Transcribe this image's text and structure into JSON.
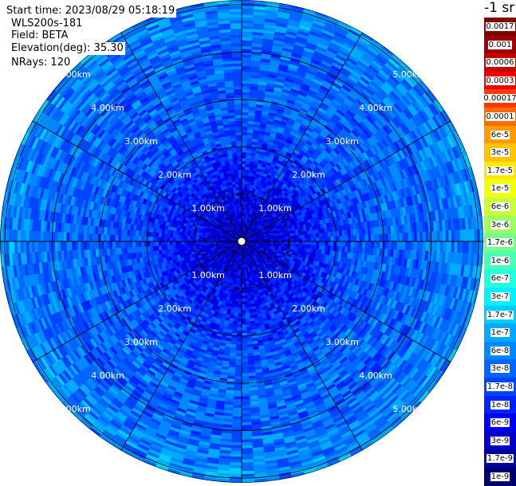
{
  "header": {
    "start_time": "Start time: 2023/08/29 05:18:19",
    "instrument": "WLS200s-181",
    "field": "Field: BETA",
    "elevation": "Elevation(deg): 35.30",
    "nrays": "NRays: 120"
  },
  "colorbar": {
    "unit": "-1 sr",
    "labels": [
      "0.0017",
      "0.001",
      "0.0006",
      "0.0003",
      "0.00017",
      "0.0001",
      "6e-5",
      "3e-5",
      "1.7e-5",
      "1e-5",
      "6e-6",
      "3e-6",
      "1.7e-6",
      "1e-6",
      "6e-7",
      "3e-7",
      "1.7e-7",
      "1e-7",
      "6e-8",
      "3e-8",
      "1.7e-8",
      "1e-8",
      "6e-9",
      "3e-9",
      "1.7e-9",
      "1e-9"
    ],
    "colors": [
      "#7f0000",
      "#9a0000",
      "#c80000",
      "#f00000",
      "#ff3a00",
      "#ff6a00",
      "#ff9a00",
      "#ffc400",
      "#ffe800",
      "#f2ff0a",
      "#c8ff36",
      "#9cff62",
      "#72ff8c",
      "#48ffb6",
      "#22ffdc",
      "#00f0ff",
      "#00ccff",
      "#00aaff",
      "#0088ff",
      "#0066ff",
      "#0044ff",
      "#0022ff",
      "#0000f0",
      "#0000c8",
      "#00009a",
      "#00006e"
    ]
  },
  "chart_data": {
    "type": "heatmap",
    "projection": "polar (PPI scan)",
    "field": "BETA",
    "elevation_deg": 35.3,
    "nrays": 120,
    "range_rings": [
      {
        "range_km": 1,
        "label": "1.00km"
      },
      {
        "range_km": 2,
        "label": "2.00km"
      },
      {
        "range_km": 3,
        "label": "3.00km"
      },
      {
        "range_km": 4,
        "label": "4.00km"
      },
      {
        "range_km": 5,
        "label": "5.00km"
      }
    ],
    "max_range_km": 5.1,
    "spoke_azimuths_deg": [
      0,
      30,
      60,
      90,
      120,
      150,
      180,
      210,
      240,
      270,
      300,
      330
    ],
    "value_range": [
      1e-09,
      0.0017
    ],
    "color_scale": "log",
    "values_by_range": [
      {
        "range_km": 0.3,
        "beta": 3e-09
      },
      {
        "range_km": 1.0,
        "beta": 6e-09
      },
      {
        "range_km": 1.5,
        "beta": 1e-08
      },
      {
        "range_km": 2.0,
        "beta": 1.7e-08
      },
      {
        "range_km": 3.0,
        "beta": 3e-08
      },
      {
        "range_km": 4.0,
        "beta": 3e-08
      },
      {
        "range_km": 5.0,
        "beta": 6e-08
      }
    ]
  }
}
